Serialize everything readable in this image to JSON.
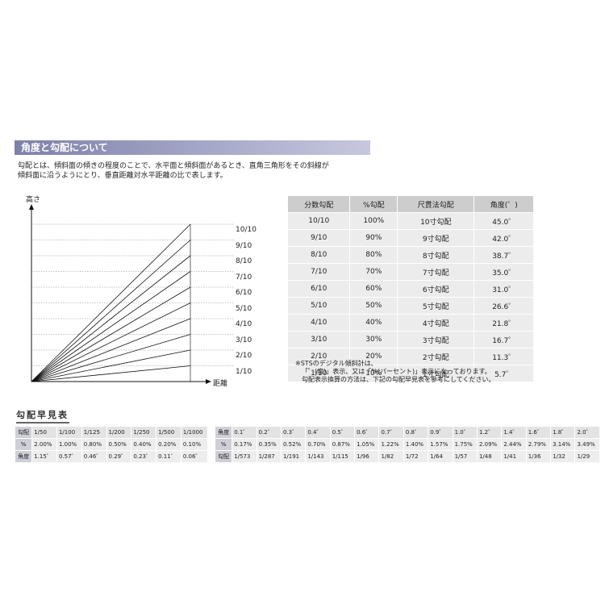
{
  "section": {
    "title": "角度と勾配について",
    "intro": [
      "勾配とは、傾斜面の傾きの程度のことで、水平面と傾斜面があるとき、直角三角形をその斜線が",
      "傾斜面に沿うようにとり、垂直距離対水平距離の比で表します。"
    ]
  },
  "diagram": {
    "y_label": "高さ",
    "x_label": "距離",
    "ratios": [
      "1/10",
      "2/10",
      "3/10",
      "4/10",
      "5/10",
      "6/10",
      "7/10",
      "8/10",
      "9/10",
      "10/10"
    ]
  },
  "main_table": {
    "headers": [
      "分数勾配",
      "%勾配",
      "尺貫法勾配",
      "角度(゜)"
    ],
    "rows": [
      [
        "10/10",
        "100%",
        "10寸勾配",
        "45.0゜"
      ],
      [
        "9/10",
        "90%",
        "9寸勾配",
        "42.0゜"
      ],
      [
        "8/10",
        "80%",
        "8寸勾配",
        "38.7゜"
      ],
      [
        "7/10",
        "70%",
        "7寸勾配",
        "35.0゜"
      ],
      [
        "6/10",
        "60%",
        "6寸勾配",
        "31.0゜"
      ],
      [
        "5/10",
        "50%",
        "5寸勾配",
        "26.6゜"
      ],
      [
        "4/10",
        "40%",
        "4寸勾配",
        "21.8゜"
      ],
      [
        "3/10",
        "30%",
        "3寸勾配",
        "16.7゜"
      ],
      [
        "2/10",
        "20%",
        "2寸勾配",
        "11.3゜"
      ],
      [
        "1/10",
        "10%",
        "1寸勾配",
        "5.7゜"
      ]
    ]
  },
  "notes": [
    "※STSのデジタル傾斜計は、",
    "「゜(度)」表示、又は「%(パーセント)」表示になっております。",
    "勾配表示換算の方法は、下記の勾配早見表を参考にしてください。"
  ],
  "quick_table": {
    "title": "勾配早見表",
    "left": {
      "rows": [
        {
          "label": "勾配",
          "values": [
            "1/50",
            "1/100",
            "1/125",
            "1/200",
            "1/250",
            "1/500",
            "1/1000"
          ]
        },
        {
          "label": "%",
          "values": [
            "2.00%",
            "1.00%",
            "0.80%",
            "0.50%",
            "0.40%",
            "0.20%",
            "0.10%"
          ]
        },
        {
          "label": "角度",
          "values": [
            "1.15゜",
            "0.57゜",
            "0.46゜",
            "0.29゜",
            "0.23゜",
            "0.11゜",
            "0.06゜"
          ]
        }
      ]
    },
    "right": {
      "rows": [
        {
          "label": "角度",
          "values": [
            "0.1゜",
            "0.2゜",
            "0.3゜",
            "0.4゜",
            "0.5゜",
            "0.6゜",
            "0.7゜",
            "0.8゜",
            "0.9゜",
            "1.0゜",
            "1.2゜",
            "1.4゜",
            "1.6゜",
            "1.8゜",
            "2.0゜"
          ]
        },
        {
          "label": "%",
          "values": [
            "0.17%",
            "0.35%",
            "0.52%",
            "0.70%",
            "0.87%",
            "1.05%",
            "1.22%",
            "1.40%",
            "1.57%",
            "1.75%",
            "2.09%",
            "2.44%",
            "2.79%",
            "3.14%",
            "3.49%"
          ]
        },
        {
          "label": "勾配",
          "values": [
            "1/573",
            "1/287",
            "1/191",
            "1/143",
            "1/115",
            "1/96",
            "1/82",
            "1/72",
            "1/64",
            "1/57",
            "1/48",
            "1/41",
            "1/36",
            "1/32",
            "1/29"
          ]
        }
      ]
    }
  }
}
